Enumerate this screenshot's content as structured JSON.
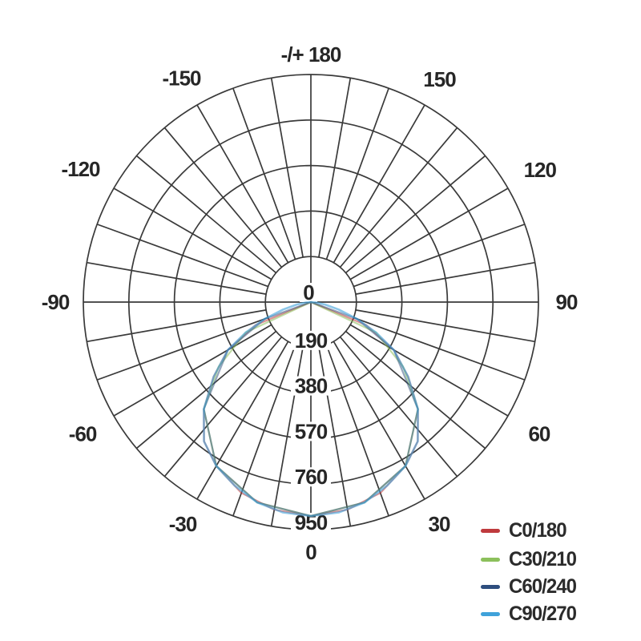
{
  "chart_data": {
    "type": "line",
    "subtype": "polar-photometric",
    "title": "",
    "layout": {
      "polar": true,
      "zero_angle_position": "bottom",
      "angle_tick_step_deg": 10,
      "angle_label_step_deg": 30,
      "grid": true,
      "rings": 5,
      "legend_position": "bottom-right",
      "background": "#ffffff",
      "grid_color": "#3a3a3a",
      "text_color": "#262626"
    },
    "angle_axis": {
      "labels": [
        {
          "screen_angle": 0,
          "text": "-/+ 180"
        },
        {
          "screen_angle": 30,
          "text": "150"
        },
        {
          "screen_angle": 60,
          "text": "120"
        },
        {
          "screen_angle": 90,
          "text": "90"
        },
        {
          "screen_angle": 120,
          "text": "60"
        },
        {
          "screen_angle": 150,
          "text": "30"
        },
        {
          "screen_angle": 180,
          "text": "0"
        },
        {
          "screen_angle": 210,
          "text": "-30"
        },
        {
          "screen_angle": 240,
          "text": "-60"
        },
        {
          "screen_angle": 270,
          "text": "-90"
        },
        {
          "screen_angle": 300,
          "text": "-120"
        },
        {
          "screen_angle": 330,
          "text": "-150"
        }
      ]
    },
    "radial_axis": {
      "ticks": [
        0,
        190,
        380,
        570,
        760,
        950
      ],
      "max": 950
    },
    "series": [
      {
        "name": "C0/180",
        "color": "#bf3a3d",
        "points": [
          [
            -90,
            0
          ],
          [
            -67.5,
            250
          ],
          [
            -60,
            400
          ],
          [
            -52.5,
            512
          ],
          [
            -45,
            632
          ],
          [
            -37.5,
            733
          ],
          [
            -30,
            790
          ],
          [
            -20,
            848
          ],
          [
            -10,
            880
          ],
          [
            0,
            893
          ],
          [
            10,
            880
          ],
          [
            20,
            848
          ],
          [
            30,
            790
          ],
          [
            37.5,
            733
          ],
          [
            45,
            632
          ],
          [
            52.5,
            512
          ],
          [
            60,
            400
          ],
          [
            67.5,
            250
          ],
          [
            90,
            0
          ]
        ]
      },
      {
        "name": "C30/210",
        "color": "#8cc05c",
        "points": [
          [
            -90,
            0
          ],
          [
            -65,
            300
          ],
          [
            -55,
            470
          ],
          [
            -45,
            632
          ],
          [
            -30,
            790
          ],
          [
            -15,
            866
          ],
          [
            0,
            893
          ],
          [
            15,
            866
          ],
          [
            30,
            790
          ],
          [
            45,
            632
          ],
          [
            55,
            470
          ],
          [
            65,
            300
          ],
          [
            90,
            0
          ]
        ]
      },
      {
        "name": "C60/240",
        "color": "#2e4e7e",
        "points": [
          [
            -90,
            0
          ],
          [
            -70,
            205
          ],
          [
            -60,
            400
          ],
          [
            -45,
            632
          ],
          [
            -30,
            790
          ],
          [
            -15,
            866
          ],
          [
            0,
            893
          ],
          [
            15,
            866
          ],
          [
            30,
            790
          ],
          [
            45,
            632
          ],
          [
            60,
            400
          ],
          [
            70,
            205
          ],
          [
            90,
            0
          ]
        ]
      },
      {
        "name": "C90/270",
        "color": "#3fa2da",
        "points": [
          [
            -90,
            0
          ],
          [
            -85,
            20
          ],
          [
            -80,
            60
          ],
          [
            -75,
            120
          ],
          [
            -70,
            205
          ],
          [
            -65,
            300
          ],
          [
            -60,
            400
          ],
          [
            -52.5,
            512
          ],
          [
            -45,
            632
          ],
          [
            -37.5,
            733
          ],
          [
            -30,
            790
          ],
          [
            -22.5,
            830
          ],
          [
            -15,
            866
          ],
          [
            -7.5,
            886
          ],
          [
            0,
            893
          ],
          [
            7.5,
            886
          ],
          [
            15,
            866
          ],
          [
            22.5,
            830
          ],
          [
            30,
            790
          ],
          [
            37.5,
            733
          ],
          [
            45,
            632
          ],
          [
            52.5,
            512
          ],
          [
            60,
            400
          ],
          [
            65,
            300
          ],
          [
            70,
            205
          ],
          [
            75,
            120
          ],
          [
            80,
            60
          ],
          [
            85,
            20
          ],
          [
            90,
            0
          ]
        ]
      }
    ]
  }
}
